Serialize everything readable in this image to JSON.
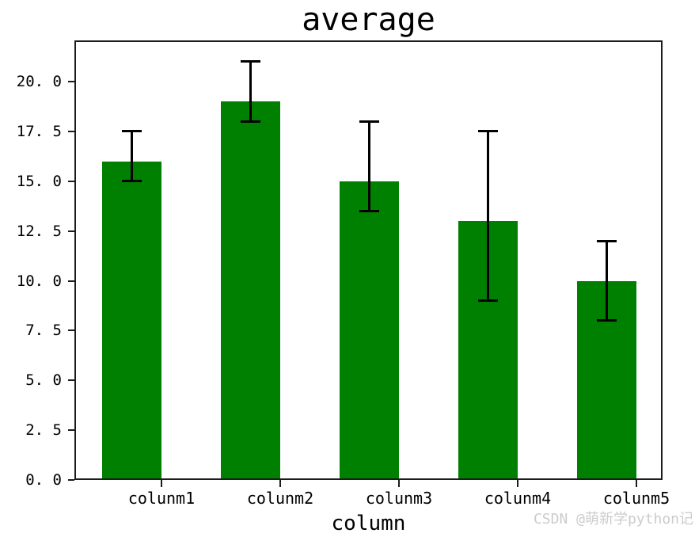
{
  "chart_data": {
    "type": "bar",
    "title": "average",
    "xlabel": "column",
    "ylabel": "",
    "categories": [
      "colunm1",
      "colunm2",
      "colunm3",
      "colunm4",
      "colunm5"
    ],
    "values": [
      16,
      19,
      15,
      13,
      10
    ],
    "error_low": [
      15,
      18,
      13.5,
      9,
      8
    ],
    "error_high": [
      17.5,
      21,
      18,
      17.5,
      12
    ],
    "y_ticks": [
      0,
      2.5,
      5,
      7.5,
      10,
      12.5,
      15,
      17.5,
      20
    ],
    "y_tick_labels": [
      "0. 0",
      "2. 5",
      "5. 0",
      "7. 5",
      "10. 0",
      "12. 5",
      "15. 0",
      "17. 5",
      "20. 0"
    ],
    "ylim": [
      0,
      22.07
    ],
    "grid": false,
    "legend": null,
    "bar_color": "#008000",
    "error_color": "#000000",
    "axis_color": "#1c1c1c",
    "text_color": "#000000"
  },
  "watermark": {
    "text": "CSDN @萌新学python记",
    "color": "#cccccc"
  }
}
